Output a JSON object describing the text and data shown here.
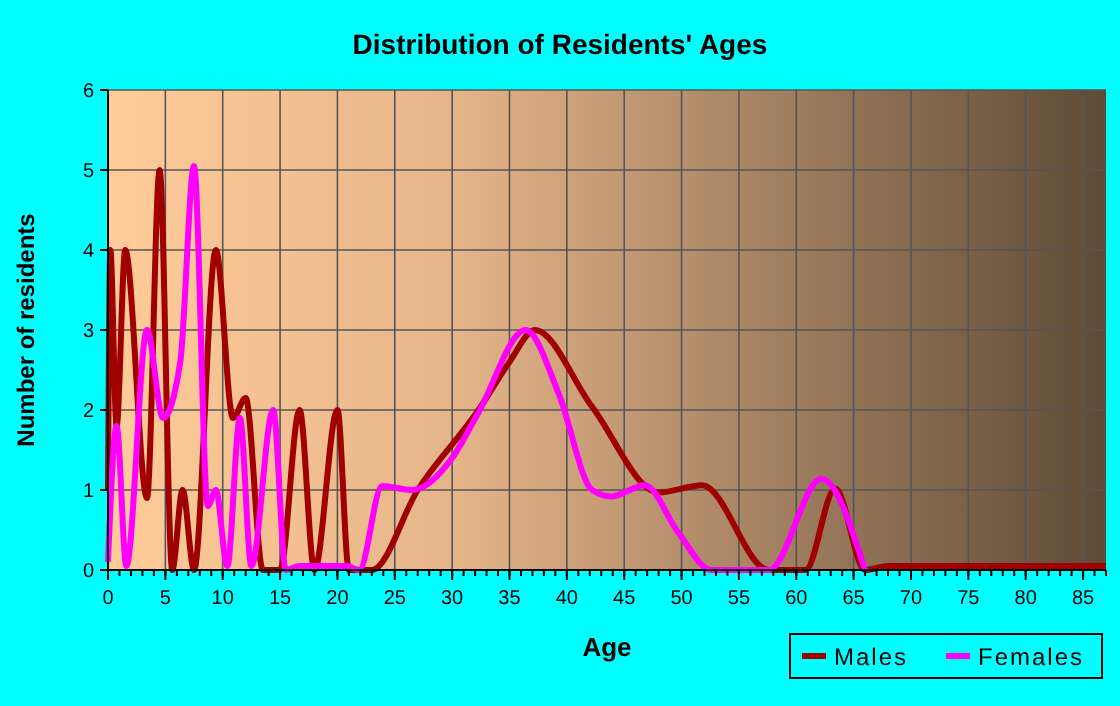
{
  "chart_data": {
    "type": "line",
    "title": "Distribution of Residents' Ages",
    "xlabel": "Age",
    "ylabel": "Number of residents",
    "xlim": [
      0,
      87
    ],
    "xticks": [
      0,
      5,
      10,
      15,
      20,
      25,
      30,
      35,
      40,
      45,
      50,
      55,
      60,
      65,
      70,
      75,
      80,
      85
    ],
    "ylim": [
      0,
      6
    ],
    "yticks": [
      0,
      1,
      2,
      3,
      4,
      5,
      6
    ],
    "grid": true,
    "legend": "bottom right",
    "series": [
      {
        "name": "Males",
        "color": "#a00000",
        "x": [
          0,
          0.2,
          0.75,
          1.5,
          3.4,
          4.5,
          5.6,
          6.5,
          7.5,
          9.4,
          10.9,
          12,
          13.5,
          15,
          16.7,
          18,
          20,
          21,
          23,
          27,
          32.3,
          35,
          37.2,
          42.2,
          48,
          51.8,
          57.6,
          60.8,
          63.4,
          66,
          68,
          87
        ],
        "values": [
          1,
          4,
          1.8,
          4,
          0.9,
          5,
          0,
          1,
          0,
          4,
          1.9,
          2.15,
          0,
          0,
          2,
          0,
          2,
          0,
          0,
          1,
          2,
          2.6,
          3,
          2.04,
          0.97,
          1.06,
          0,
          0,
          1.02,
          0,
          0.05,
          0.05
        ]
      },
      {
        "name": "Females",
        "color": "#ff00ff",
        "x": [
          0,
          0.75,
          1.6,
          3.4,
          4.8,
          6.3,
          7.5,
          8.7,
          9.4,
          10.4,
          11.5,
          12.5,
          14.4,
          15.5,
          16.7,
          20.8,
          21.9,
          23.9,
          26.5,
          30,
          32.3,
          36.4,
          39.3,
          42.2,
          43.9,
          46.8,
          49.7,
          52.6,
          57.6,
          62.2,
          66
        ],
        "values": [
          0.1,
          1.8,
          0.05,
          3,
          1.9,
          2.6,
          5.05,
          0.8,
          1,
          0.05,
          1.9,
          0.05,
          2,
          0,
          0.05,
          0.05,
          0,
          1.05,
          1,
          1.4,
          1.97,
          3,
          2.2,
          1,
          0.92,
          1.06,
          0.47,
          0,
          0,
          1.14,
          0
        ]
      }
    ]
  }
}
